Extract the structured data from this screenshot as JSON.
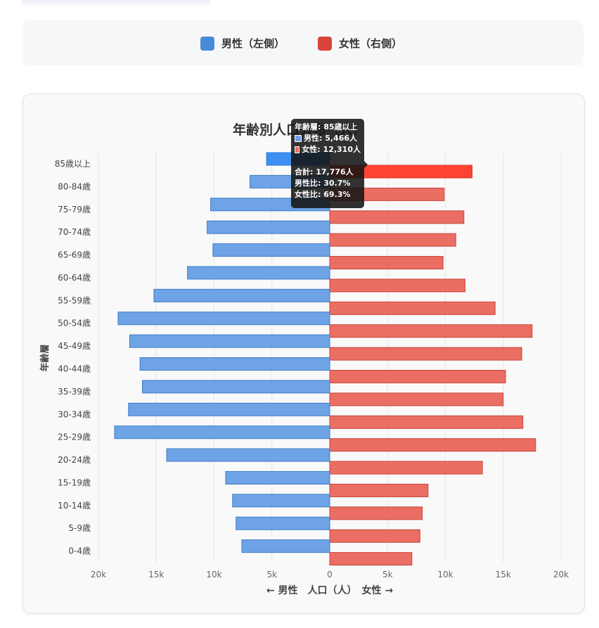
{
  "legend": {
    "male_label": "男性（左側）",
    "female_label": "女性（右側）",
    "male_color": "#4a8bd9",
    "female_color": "#d9453b"
  },
  "chart_data": {
    "type": "bar",
    "orientation": "horizontal-diverging",
    "title": "年齢別人口分布（人）",
    "xlabel": "← 男性　人口（人）　女性 →",
    "ylabel": "年齢層",
    "xlim": [
      -20000,
      20000
    ],
    "x_tick_labels": [
      "20k",
      "15k",
      "10k",
      "5k",
      "0",
      "5k",
      "10k",
      "15k",
      "20k"
    ],
    "categories": [
      "85歳以上",
      "80-84歳",
      "75-79歳",
      "70-74歳",
      "65-69歳",
      "60-64歳",
      "55-59歳",
      "50-54歳",
      "45-49歳",
      "40-44歳",
      "35-39歳",
      "30-34歳",
      "25-29歳",
      "20-24歳",
      "15-19歳",
      "10-14歳",
      "5-9歳",
      "0-4歳"
    ],
    "series": [
      {
        "name": "男性",
        "color": "#6ea3e6",
        "values": [
          5466,
          6900,
          10300,
          10600,
          10100,
          12300,
          15200,
          18300,
          17300,
          16400,
          16200,
          17400,
          18600,
          14100,
          9000,
          8400,
          8100,
          7600
        ]
      },
      {
        "name": "女性",
        "color": "#ea6e64",
        "values": [
          12310,
          9900,
          11600,
          10900,
          9800,
          11700,
          14300,
          17500,
          16600,
          15200,
          15000,
          16700,
          17800,
          13200,
          8500,
          8000,
          7800,
          7100
        ]
      }
    ],
    "highlight_index": 0,
    "highlight_colors": {
      "male": "#3d8ff2",
      "female": "#ff4433"
    },
    "grid": true
  },
  "tooltip": {
    "title": "年齢層: 85歳以上",
    "male": "男性: 5,466人",
    "female": "女性: 12,310人",
    "total": "合計: 17,776人",
    "male_ratio": "男性比: 30.7%",
    "female_ratio": "女性比: 69.3%"
  }
}
